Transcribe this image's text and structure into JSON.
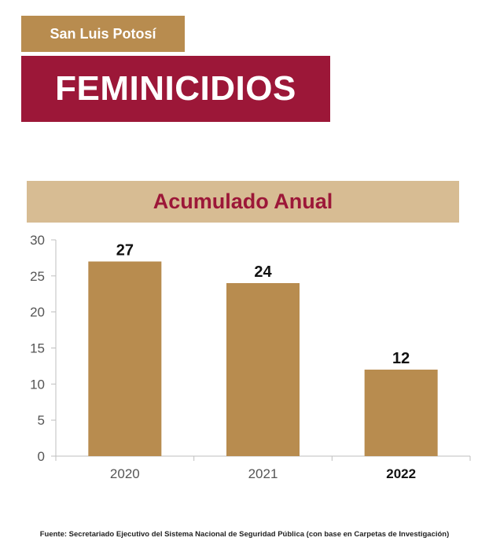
{
  "header": {
    "state_label": "San Luis Potosí",
    "title": "FEMINICIDIOS",
    "subtitle": "Acumulado Anual"
  },
  "colors": {
    "tag_bg": "#b88c4f",
    "title_bg": "#9c1738",
    "subtitle_bg": "#d7bc93",
    "bar": "#b88c4f"
  },
  "chart_data": {
    "type": "bar",
    "categories": [
      "2020",
      "2021",
      "2022"
    ],
    "values": [
      27,
      24,
      12
    ],
    "data_labels": [
      "27",
      "24",
      "12"
    ],
    "highlighted_category": "2022",
    "ylim": [
      0,
      30
    ],
    "yticks": [
      "0",
      "5",
      "10",
      "15",
      "20",
      "25",
      "30"
    ],
    "grid": false
  },
  "footer": {
    "source": "Fuente: Secretariado Ejecutivo del Sistema Nacional de Seguridad Pública (con base en Carpetas de Investigación)"
  }
}
